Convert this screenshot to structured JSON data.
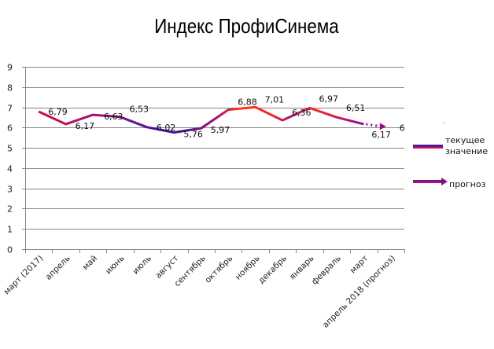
{
  "chart_data": {
    "type": "line",
    "title": "Индекс ПрофиСинема",
    "xlabel": "",
    "ylabel": "",
    "ylim": [
      0,
      9
    ],
    "yticks": [
      0,
      1,
      2,
      3,
      4,
      5,
      6,
      7,
      8,
      9
    ],
    "grid": true,
    "legend_position": "right",
    "categories": [
      "март (2017)",
      "апрель",
      "май",
      "июнь",
      "июль",
      "август",
      "сентябрь",
      "октябрь",
      "ноябрь",
      "декабрь",
      "январь",
      "февраль",
      "март",
      "апрель 2018 (прогноз)"
    ],
    "series": [
      {
        "name": "текущее значение",
        "values": [
          6.79,
          6.17,
          6.63,
          6.53,
          6.02,
          5.76,
          5.97,
          6.88,
          7.01,
          6.36,
          6.97,
          6.51,
          6.17,
          null
        ],
        "labels": [
          "6,79",
          "6,17",
          "6,63",
          "6,53",
          "6,02",
          "5,76",
          "5,97",
          "6,88",
          "7,01",
          "6,36",
          "6,97",
          "6,51",
          "6,17",
          null
        ]
      },
      {
        "name": "прогноз",
        "values": [
          null,
          null,
          null,
          null,
          null,
          null,
          null,
          null,
          null,
          null,
          null,
          null,
          6.17,
          6
        ],
        "labels": [
          null,
          null,
          null,
          null,
          null,
          null,
          null,
          null,
          null,
          null,
          null,
          null,
          null,
          "6"
        ]
      }
    ]
  },
  "title": "Индекс ПрофиСинема",
  "legend": {
    "current_line1": "текущее",
    "current_line2": "значение",
    "forecast": "прогноз"
  },
  "colors": {
    "line_red": "#e8003a",
    "line_magenta": "#a0127e",
    "line_blue": "#3a1490",
    "line_orange": "#ff3a10",
    "forecast": "#9b0a8e",
    "grid": "#868686"
  }
}
